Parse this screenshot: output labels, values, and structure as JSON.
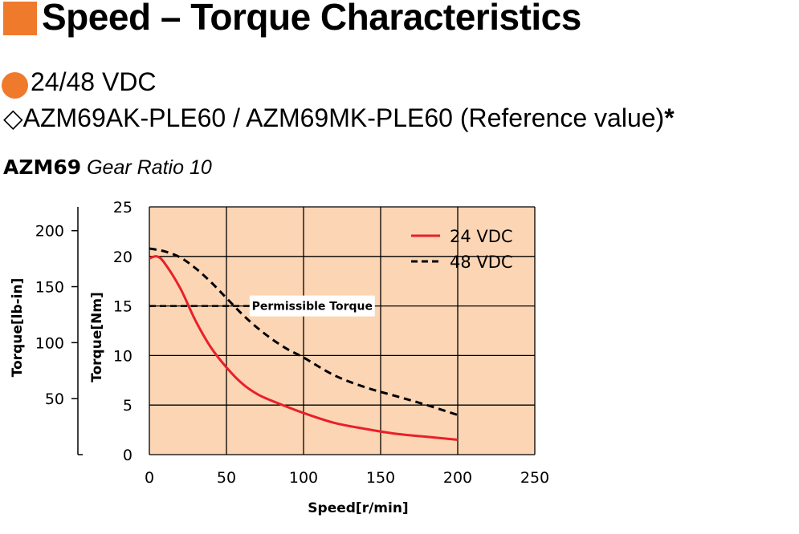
{
  "header": {
    "title": "Speed – Torque Characteristics",
    "voltage": "24/48 VDC",
    "product_prefix": "◇",
    "product": "AZM69AK-PLE60 / AZM69MK-PLE60 (Reference value)",
    "product_mark": "*",
    "model": "AZM69",
    "gear_ratio": "Gear Ratio 10"
  },
  "colors": {
    "accent": "#f07a2c",
    "plot_background": "#fcd5b4",
    "series_24": "#e8202a",
    "series_48": "#000000"
  },
  "chart_data": {
    "type": "line",
    "xlabel": "Speed[r/min]",
    "ylabel": "Torque[Nm]",
    "y2label": "Torque[lb-in]",
    "xlim": [
      0,
      250
    ],
    "ylim": [
      0,
      25
    ],
    "xticks": [
      0,
      50,
      100,
      150,
      200,
      250
    ],
    "yticks": [
      0,
      5,
      10,
      15,
      20,
      25
    ],
    "y2ticks": [
      50,
      100,
      150,
      200
    ],
    "grid": true,
    "legend_position": "top-right",
    "annotation": {
      "label": "Permissible Torque",
      "y": 15
    },
    "series": [
      {
        "name": "24 VDC",
        "style": "solid",
        "x": [
          0,
          5,
          10,
          20,
          30,
          40,
          50,
          60,
          70,
          80,
          100,
          120,
          140,
          160,
          180,
          200
        ],
        "y": [
          19.8,
          20.0,
          19.3,
          16.8,
          13.5,
          10.8,
          8.8,
          7.2,
          6.1,
          5.4,
          4.2,
          3.2,
          2.6,
          2.1,
          1.8,
          1.5
        ]
      },
      {
        "name": "48 VDC",
        "style": "dashed",
        "x": [
          0,
          10,
          20,
          30,
          40,
          50,
          60,
          70,
          80,
          90,
          100,
          120,
          140,
          160,
          180,
          200
        ],
        "y": [
          20.8,
          20.5,
          19.9,
          18.8,
          17.4,
          15.8,
          14.2,
          12.8,
          11.6,
          10.6,
          9.8,
          8.0,
          6.8,
          5.9,
          5.0,
          4.0
        ]
      }
    ]
  }
}
